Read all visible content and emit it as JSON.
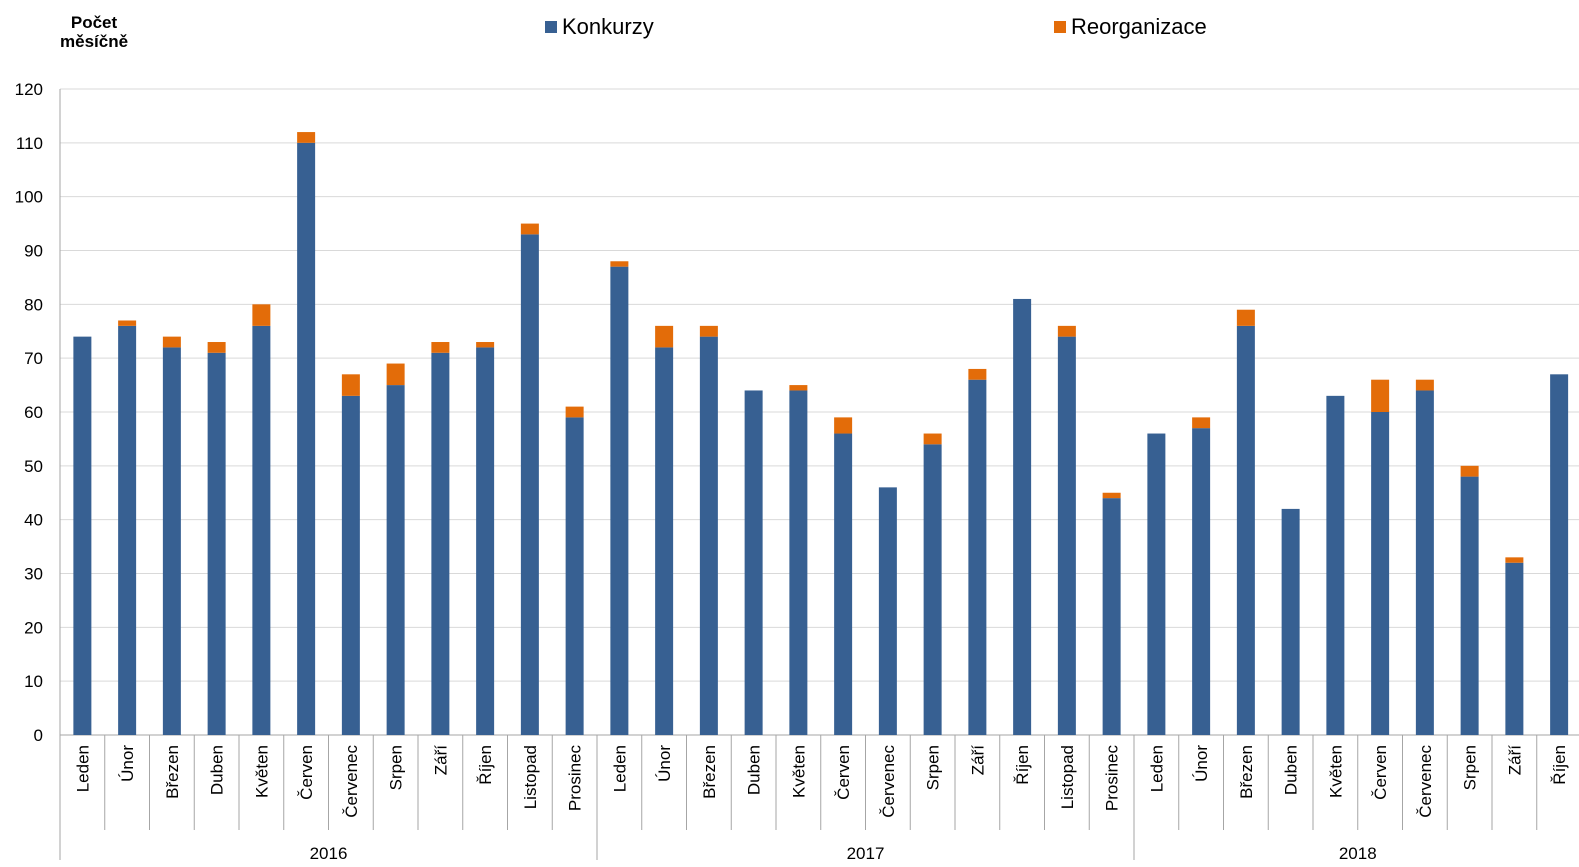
{
  "chart_data": {
    "type": "bar",
    "stacked": true,
    "ylabel": "Počet\nměsíčně",
    "ylim": [
      0,
      120
    ],
    "yticks": [
      0,
      10,
      20,
      30,
      40,
      50,
      60,
      70,
      80,
      90,
      100,
      110,
      120
    ],
    "grid": true,
    "legend_position": "top",
    "colors": {
      "Konkurzy": "#376092",
      "Reorganizace": "#E36C09",
      "grid": "#D9D9D9",
      "axis": "#A6A6A6"
    },
    "groups": [
      {
        "label": "2016",
        "categories": [
          "Leden",
          "Únor",
          "Březen",
          "Duben",
          "Květen",
          "Červen",
          "Červenec",
          "Srpen",
          "Září",
          "Říjen",
          "Listopad",
          "Prosinec"
        ]
      },
      {
        "label": "2017",
        "categories": [
          "Leden",
          "Únor",
          "Březen",
          "Duben",
          "Květen",
          "Červen",
          "Červenec",
          "Srpen",
          "Září",
          "Říjen",
          "Listopad",
          "Prosinec"
        ]
      },
      {
        "label": "2018",
        "categories": [
          "Leden",
          "Únor",
          "Březen",
          "Duben",
          "Květen",
          "Červen",
          "Červenec",
          "Srpen",
          "Září",
          "Říjen"
        ]
      }
    ],
    "series": [
      {
        "name": "Konkurzy",
        "values": [
          74,
          76,
          72,
          71,
          76,
          110,
          63,
          65,
          71,
          72,
          93,
          59,
          87,
          72,
          74,
          64,
          64,
          56,
          46,
          54,
          66,
          81,
          74,
          44,
          56,
          57,
          76,
          42,
          63,
          60,
          64,
          48,
          32,
          67
        ]
      },
      {
        "name": "Reorganizace",
        "values": [
          0,
          1,
          2,
          2,
          4,
          2,
          4,
          4,
          2,
          1,
          2,
          2,
          1,
          4,
          2,
          0,
          1,
          3,
          0,
          2,
          2,
          0,
          2,
          1,
          0,
          2,
          3,
          0,
          0,
          6,
          2,
          2,
          1,
          0
        ]
      }
    ]
  }
}
